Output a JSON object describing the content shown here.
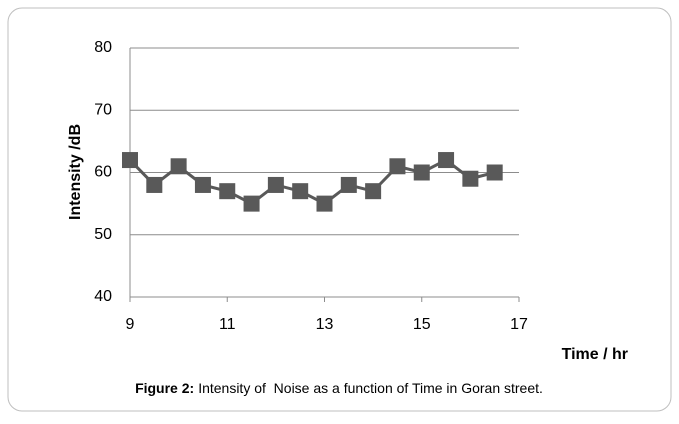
{
  "chart_data": {
    "type": "line",
    "x_label": "Time / hr",
    "y_label": "Intensity /dB",
    "caption_label": "Figure 2:",
    "caption": "Intensity of  Noise as a function of Time in Goran street.",
    "x": [
      9,
      9.5,
      10,
      10.5,
      11,
      11.5,
      12,
      12.5,
      13,
      13.5,
      14,
      14.5,
      15,
      15.5,
      16,
      16.5
    ],
    "series": [
      {
        "name": "Intensity",
        "color": "#595959",
        "values": [
          62,
          58,
          61,
          58,
          57,
          55,
          58,
          57,
          55,
          58,
          57,
          61,
          60,
          62,
          59,
          60
        ]
      }
    ],
    "xlim": [
      9,
      17
    ],
    "xticks": [
      9,
      11,
      13,
      15,
      17
    ],
    "ylim": [
      40,
      80
    ],
    "yticks": [
      40,
      50,
      60,
      70,
      80
    ],
    "grid": true
  }
}
